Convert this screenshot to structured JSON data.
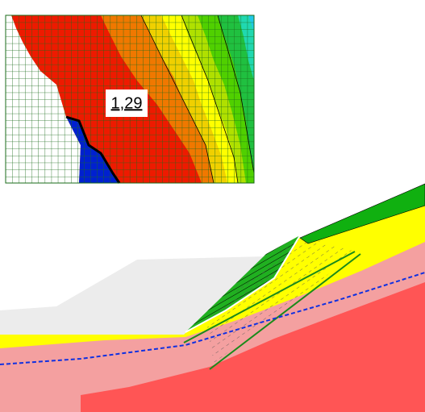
{
  "factor_label": "1,29"
}
